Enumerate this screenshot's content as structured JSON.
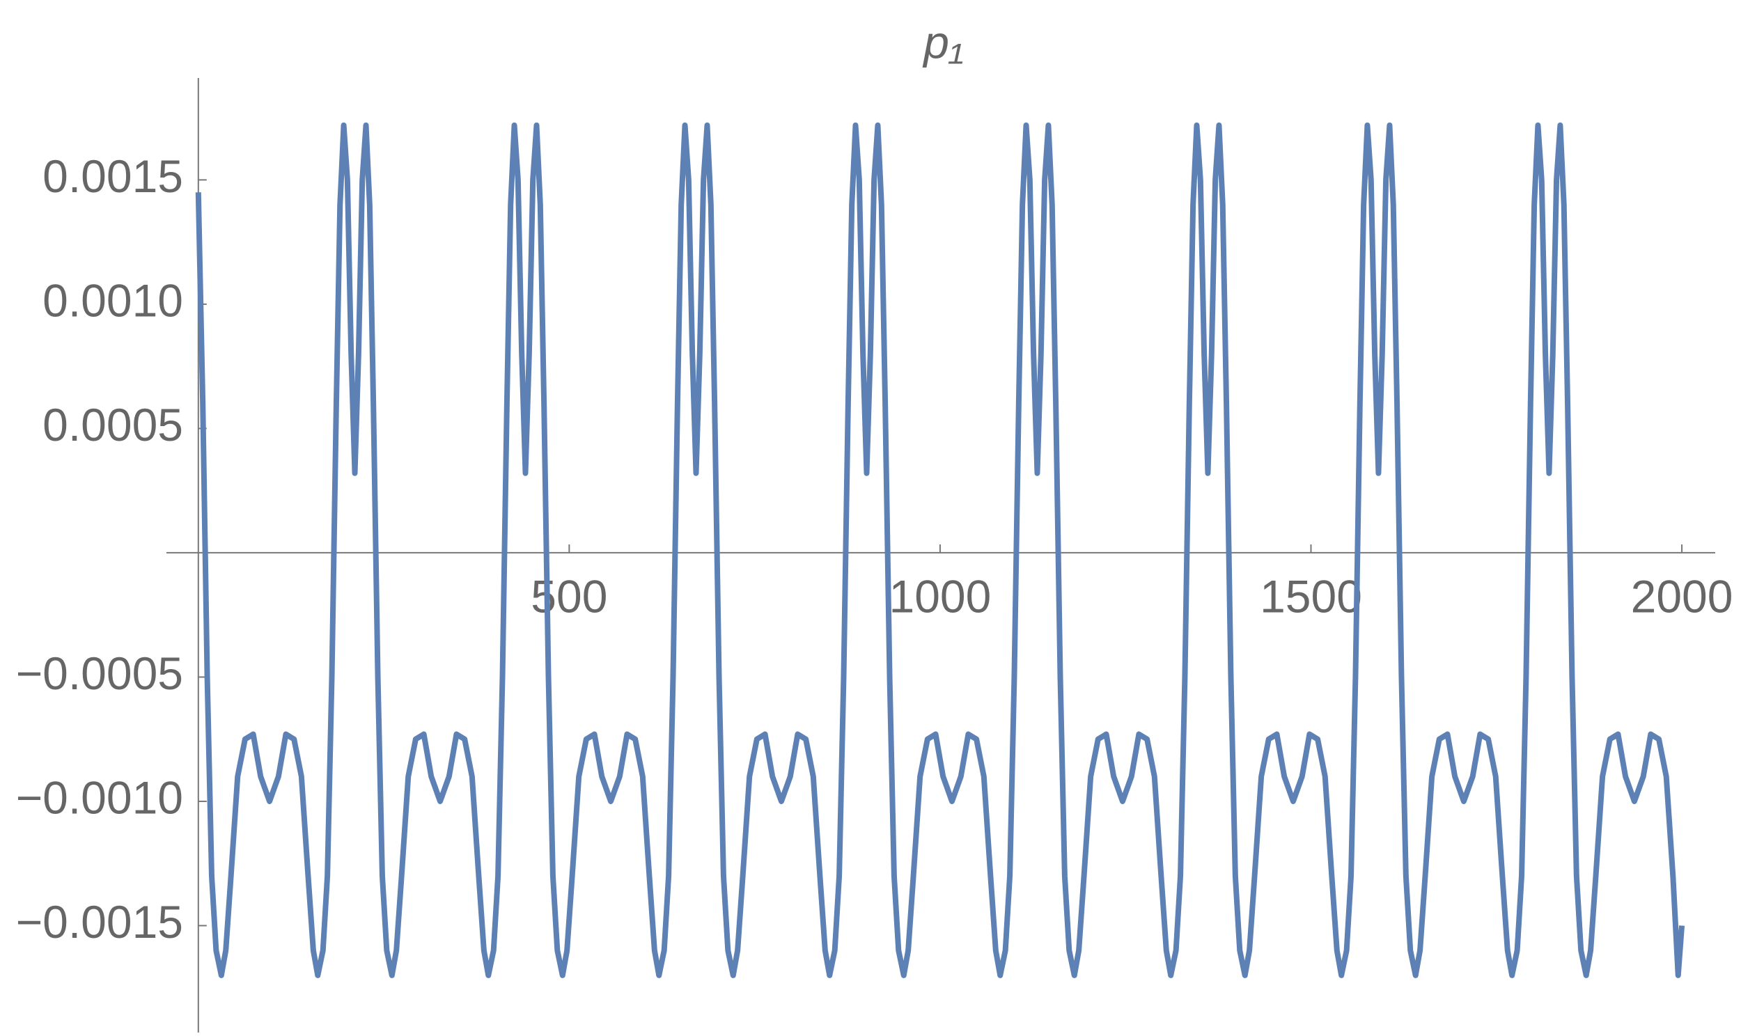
{
  "chart_data": {
    "type": "line",
    "title": "p₁",
    "xlim": [
      -43,
      2045
    ],
    "xticks": [
      500,
      1000,
      1500,
      2000
    ],
    "ylim": [
      -0.00193,
      0.00191
    ],
    "yticks": [
      {
        "value": -0.0015,
        "label": "−0.0015"
      },
      {
        "value": -0.001,
        "label": "−0.0010"
      },
      {
        "value": -0.0005,
        "label": "−0.0005"
      },
      0.0005,
      {
        "value": 0.001,
        "label": "0.0010"
      },
      0.0015
    ],
    "x": [
      0,
      6,
      12,
      18,
      24,
      31,
      37,
      44,
      53,
      63,
      74,
      84,
      96,
      108,
      118,
      129,
      139,
      148,
      155,
      161,
      168,
      174,
      180,
      186,
      191,
      196,
      201,
      206,
      211,
      216,
      221,
      226,
      231,
      236,
      242,
      248,
      254,
      261,
      267,
      274,
      283,
      293,
      304,
      314,
      326,
      338,
      348,
      359,
      369,
      378,
      385,
      391,
      398,
      404,
      410,
      416,
      421,
      426,
      431,
      436,
      441,
      446,
      451,
      456,
      461,
      466,
      472,
      478,
      484,
      491,
      497,
      504,
      513,
      523,
      534,
      544,
      556,
      568,
      578,
      589,
      599,
      608,
      615,
      621,
      628,
      634,
      640,
      646,
      651,
      656,
      661,
      666,
      671,
      676,
      681,
      686,
      691,
      696,
      702,
      708,
      714,
      721,
      727,
      734,
      743,
      753,
      764,
      774,
      786,
      798,
      808,
      819,
      829,
      838,
      845,
      851,
      858,
      864,
      870,
      876,
      881,
      886,
      891,
      896,
      901,
      906,
      911,
      916,
      921,
      926,
      932,
      938,
      944,
      951,
      957,
      964,
      973,
      983,
      994,
      1004,
      1016,
      1028,
      1038,
      1049,
      1059,
      1068,
      1075,
      1081,
      1088,
      1094,
      1100,
      1106,
      1111,
      1116,
      1121,
      1126,
      1131,
      1136,
      1141,
      1146,
      1151,
      1156,
      1162,
      1168,
      1174,
      1181,
      1187,
      1194,
      1203,
      1213,
      1224,
      1234,
      1246,
      1258,
      1268,
      1279,
      1289,
      1298,
      1305,
      1311,
      1318,
      1324,
      1330,
      1336,
      1341,
      1346,
      1351,
      1356,
      1361,
      1366,
      1371,
      1376,
      1381,
      1386,
      1392,
      1398,
      1404,
      1411,
      1417,
      1424,
      1433,
      1443,
      1454,
      1464,
      1476,
      1488,
      1498,
      1509,
      1519,
      1528,
      1535,
      1541,
      1548,
      1554,
      1560,
      1566,
      1571,
      1576,
      1581,
      1586,
      1591,
      1596,
      1601,
      1606,
      1611,
      1616,
      1622,
      1628,
      1634,
      1641,
      1647,
      1654,
      1663,
      1673,
      1684,
      1694,
      1706,
      1718,
      1728,
      1739,
      1749,
      1758,
      1765,
      1771,
      1778,
      1784,
      1790,
      1796,
      1801,
      1806,
      1811,
      1816,
      1821,
      1826,
      1831,
      1836,
      1841,
      1846,
      1852,
      1858,
      1864,
      1871,
      1877,
      1884,
      1893,
      1903,
      1914,
      1924,
      1936,
      1948,
      1958,
      1969,
      1979,
      1988,
      1995,
      2000
    ],
    "series": [
      {
        "color": "#5e81b5",
        "values": [
          0.00145,
          0.0006,
          -0.0005,
          -0.0013,
          -0.0016,
          -0.0017,
          -0.0016,
          -0.0013,
          -0.0009,
          -0.00075,
          -0.00073,
          -0.0009,
          -0.001,
          -0.0009,
          -0.00073,
          -0.00075,
          -0.0009,
          -0.0013,
          -0.0016,
          -0.0017,
          -0.0016,
          -0.0013,
          -0.0005,
          0.0006,
          0.0014,
          0.00172,
          0.0015,
          0.0008,
          0.00032,
          0.0008,
          0.0015,
          0.00172,
          0.0014,
          0.0006,
          -0.0005,
          -0.0013,
          -0.0016,
          -0.0017,
          -0.0016,
          -0.0013,
          -0.0009,
          -0.00075,
          -0.00073,
          -0.0009,
          -0.001,
          -0.0009,
          -0.00073,
          -0.00075,
          -0.0009,
          -0.0013,
          -0.0016,
          -0.0017,
          -0.0016,
          -0.0013,
          -0.0005,
          0.0006,
          0.0014,
          0.00172,
          0.0015,
          0.0008,
          0.00032,
          0.0008,
          0.0015,
          0.00172,
          0.0014,
          0.0006,
          -0.0005,
          -0.0013,
          -0.0016,
          -0.0017,
          -0.0016,
          -0.0013,
          -0.0009,
          -0.00075,
          -0.00073,
          -0.0009,
          -0.001,
          -0.0009,
          -0.00073,
          -0.00075,
          -0.0009,
          -0.0013,
          -0.0016,
          -0.0017,
          -0.0016,
          -0.0013,
          -0.0005,
          0.0006,
          0.0014,
          0.00172,
          0.0015,
          0.0008,
          0.00032,
          0.0008,
          0.0015,
          0.00172,
          0.0014,
          0.0006,
          -0.0005,
          -0.0013,
          -0.0016,
          -0.0017,
          -0.0016,
          -0.0013,
          -0.0009,
          -0.00075,
          -0.00073,
          -0.0009,
          -0.001,
          -0.0009,
          -0.00073,
          -0.00075,
          -0.0009,
          -0.0013,
          -0.0016,
          -0.0017,
          -0.0016,
          -0.0013,
          -0.0005,
          0.0006,
          0.0014,
          0.00172,
          0.0015,
          0.0008,
          0.00032,
          0.0008,
          0.0015,
          0.00172,
          0.0014,
          0.0006,
          -0.0005,
          -0.0013,
          -0.0016,
          -0.0017,
          -0.0016,
          -0.0013,
          -0.0009,
          -0.00075,
          -0.00073,
          -0.0009,
          -0.001,
          -0.0009,
          -0.00073,
          -0.00075,
          -0.0009,
          -0.0013,
          -0.0016,
          -0.0017,
          -0.0016,
          -0.0013,
          -0.0005,
          0.0006,
          0.0014,
          0.00172,
          0.0015,
          0.0008,
          0.00032,
          0.0008,
          0.0015,
          0.00172,
          0.0014,
          0.0006,
          -0.0005,
          -0.0013,
          -0.0016,
          -0.0017,
          -0.0016,
          -0.0013,
          -0.0009,
          -0.00075,
          -0.00073,
          -0.0009,
          -0.001,
          -0.0009,
          -0.00073,
          -0.00075,
          -0.0009,
          -0.0013,
          -0.0016,
          -0.0017,
          -0.0016,
          -0.0013,
          -0.0005,
          0.0006,
          0.0014,
          0.00172,
          0.0015,
          0.0008,
          0.00032,
          0.0008,
          0.0015,
          0.00172,
          0.0014,
          0.0006,
          -0.0005,
          -0.0013,
          -0.0016,
          -0.0017,
          -0.0016,
          -0.0013,
          -0.0009,
          -0.00075,
          -0.00073,
          -0.0009,
          -0.001,
          -0.0009,
          -0.00073,
          -0.00075,
          -0.0009,
          -0.0013,
          -0.0016,
          -0.0017,
          -0.0016,
          -0.0013,
          -0.0005,
          0.0006,
          0.0014,
          0.00172,
          0.0015,
          0.0008,
          0.00032,
          0.0008,
          0.0015,
          0.00172,
          0.0014,
          0.0006,
          -0.0005,
          -0.0013,
          -0.0016,
          -0.0017,
          -0.0016,
          -0.0013,
          -0.0009,
          -0.00075,
          -0.00073,
          -0.0009,
          -0.001,
          -0.0009,
          -0.00073,
          -0.00075,
          -0.0009,
          -0.0013,
          -0.0016,
          -0.0017,
          -0.0016,
          -0.0013,
          -0.0005,
          0.0006,
          0.0014,
          0.00172,
          0.0015,
          0.0008,
          0.00032,
          0.0008,
          0.0015,
          0.00172,
          0.0014,
          0.0006,
          -0.0005,
          -0.0013,
          -0.0016,
          -0.0017,
          -0.0016,
          -0.0013,
          -0.0009,
          -0.00075,
          -0.00073,
          -0.0009,
          -0.001,
          -0.0009,
          -0.00073,
          -0.00075,
          -0.0009,
          -0.0013,
          -0.0017,
          -0.0015
        ]
      }
    ]
  }
}
